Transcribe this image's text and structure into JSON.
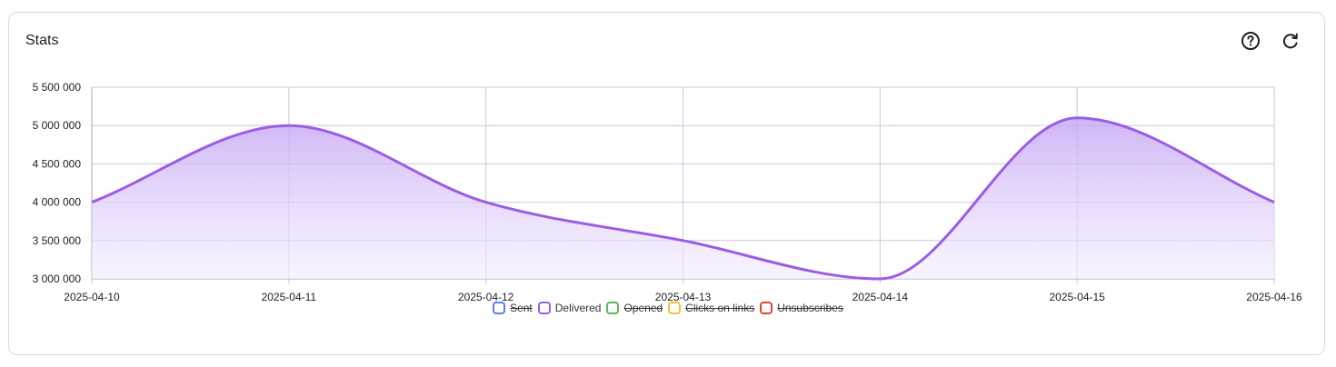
{
  "card": {
    "title": "Stats"
  },
  "icons": {
    "help": "question-circle-icon",
    "refresh": "refresh-icon"
  },
  "chart_data": {
    "type": "area",
    "title": "",
    "xlabel": "",
    "ylabel": "",
    "categories": [
      "2025-04-10",
      "2025-04-11",
      "2025-04-12",
      "2025-04-13",
      "2025-04-14",
      "2025-04-15",
      "2025-04-16"
    ],
    "ylim": [
      3000000,
      5500000
    ],
    "y_ticks": [
      3000000,
      3500000,
      4000000,
      4500000,
      5000000,
      5500000
    ],
    "y_tick_labels": [
      "3 000 000",
      "3 500 000",
      "4 000 000",
      "4 500 000",
      "5 000 000",
      "5 500 000"
    ],
    "grid": true,
    "legend_position": "bottom",
    "series": [
      {
        "name": "Delivered",
        "values": [
          4000000,
          5000000,
          4000000,
          3500000,
          3000000,
          5100000,
          4000000
        ],
        "color": "#9b5de5"
      }
    ],
    "legend": [
      {
        "label": "Sent",
        "color": "#5b7bf0",
        "hidden": true
      },
      {
        "label": "Delivered",
        "color": "#9b5de5",
        "hidden": false
      },
      {
        "label": "Opened",
        "color": "#5cb85c",
        "hidden": true
      },
      {
        "label": "Clicks on links",
        "color": "#f0c040",
        "hidden": true
      },
      {
        "label": "Unsubscribes",
        "color": "#e0453a",
        "hidden": true
      }
    ]
  }
}
